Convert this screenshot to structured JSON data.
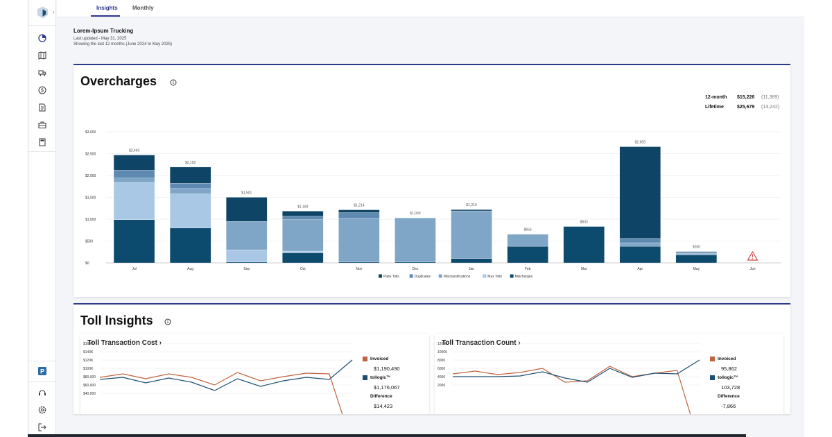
{
  "tabs": [
    {
      "label": "Insights",
      "active": true
    },
    {
      "label": "Monthly",
      "active": false
    }
  ],
  "header": {
    "company": "Lorem-Ipsum Trucking",
    "last_updated": "Last updated - May 31, 2025",
    "showing": "Showing the last 12 months (June 2024 to May 2025)"
  },
  "overcharges": {
    "title": "Overcharges",
    "summary": [
      {
        "label": "12-month",
        "value": "$15,226",
        "count": "(11,389)"
      },
      {
        "label": "Lifetime",
        "value": "$25,679",
        "count": "(13,242)"
      }
    ]
  },
  "chart_data": {
    "type": "bar",
    "stacked": true,
    "categories": [
      "Jul",
      "Aug",
      "Sep",
      "Oct",
      "Nov",
      "Dec",
      "Jan",
      "Feb",
      "Mar",
      "Apr",
      "May",
      "Jun"
    ],
    "totals_labels": [
      "$2,469",
      "$2,192",
      "$1,501",
      "$1,184",
      "$1,214",
      "$1,030",
      "$1,219",
      "$656",
      "$833",
      "$2,659",
      "$260",
      ""
    ],
    "series": [
      {
        "name": "Mischarges",
        "color": "#0c4a6e",
        "values": [
          990,
          800,
          20,
          230,
          20,
          20,
          100,
          380,
          833,
          380,
          180,
          0
        ]
      },
      {
        "name": "Max Tolls",
        "color": "#a8c8e6",
        "values": [
          850,
          780,
          280,
          40,
          0,
          0,
          0,
          0,
          0,
          0,
          0,
          0
        ]
      },
      {
        "name": "Misclassifications",
        "color": "#7fa6c7",
        "values": [
          100,
          120,
          650,
          720,
          1000,
          1010,
          1090,
          276,
          0,
          80,
          40,
          0
        ]
      },
      {
        "name": "Duplicates",
        "color": "#5e89b0",
        "values": [
          180,
          120,
          0,
          80,
          130,
          0,
          0,
          0,
          0,
          100,
          30,
          0
        ]
      },
      {
        "name": "Plate Tolls",
        "color": "#0e4466",
        "values": [
          349,
          372,
          551,
          114,
          64,
          0,
          29,
          0,
          0,
          2099,
          10,
          0
        ]
      }
    ],
    "legend_order": [
      "Plate Tolls",
      "Duplicates",
      "Misclassifications",
      "Max Tolls",
      "Mischarges"
    ],
    "yticks": [
      "$0",
      "$500",
      "$1,000",
      "$1,500",
      "$2,000",
      "$2,500",
      "$3,000"
    ],
    "ylim": [
      0,
      3000
    ],
    "warning_month": "Jun",
    "legend_position": "bottom"
  },
  "toll_insights": {
    "title": "Toll Insights",
    "cost": {
      "title": "Toll Transaction Cost",
      "yticks": [
        "$160K",
        "$140K",
        "$120K",
        "$100K",
        "$80,000",
        "$60,000",
        "$40,000"
      ],
      "invoiced_label": "Invoiced",
      "invoiced_value": "$1,190,490",
      "tollogic_label": "tollogic™",
      "tollogic_value": "$1,176,067",
      "difference_label": "Difference",
      "difference_value": "$14,423",
      "invoiced_color": "#c2613d",
      "tollogic_color": "#1d4f70"
    },
    "count": {
      "title": "Toll Transaction Count",
      "yticks": [
        "12000",
        "10000",
        "8000",
        "6000",
        "4000",
        "2000"
      ],
      "invoiced_label": "Invoiced",
      "invoiced_value": "95,862",
      "tollogic_label": "tollogic™",
      "tollogic_value": "103,728",
      "difference_label": "Difference",
      "difference_value": "-7,866",
      "invoiced_color": "#c2613d",
      "tollogic_color": "#1d4f70"
    }
  }
}
